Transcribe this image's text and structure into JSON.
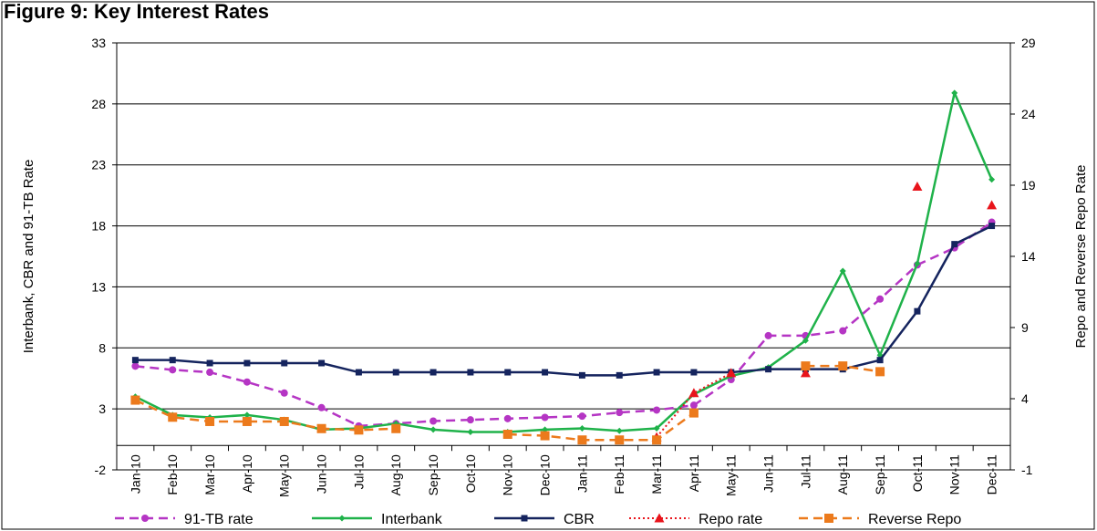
{
  "caption": "Figure 9: Key Interest Rates",
  "chart_data": {
    "type": "line",
    "categories": [
      "Jan-10",
      "Feb-10",
      "Mar-10",
      "Apr-10",
      "May-10",
      "Jun-10",
      "Jul-10",
      "Aug-10",
      "Sep-10",
      "Oct-10",
      "Nov-10",
      "Dec-10",
      "Jan-11",
      "Feb-11",
      "Mar-11",
      "Apr-11",
      "May-11",
      "Jun-11",
      "Jul-11",
      "Aug-11",
      "Sep-11",
      "Oct-11",
      "Nov-11",
      "Dec-11"
    ],
    "ylabel": "Interbank, CBR and 91-TB Rate",
    "y2label": "Repo and Reverse Repo Rate",
    "ylim": [
      -2,
      33
    ],
    "yticks": [
      -2,
      3,
      8,
      13,
      18,
      23,
      28,
      33
    ],
    "y2lim": [
      -1,
      29
    ],
    "y2ticks": [
      -1,
      4,
      9,
      14,
      19,
      24,
      29
    ],
    "grid": "horizontal",
    "legend_position": "bottom",
    "series": [
      {
        "name": "91-TB rate",
        "axis": "left",
        "color": "#b535c4",
        "style": "dashed",
        "marker": "circle",
        "values": [
          6.5,
          6.2,
          6.0,
          5.2,
          4.3,
          3.1,
          1.6,
          1.8,
          2.0,
          2.1,
          2.2,
          2.3,
          2.4,
          2.7,
          2.9,
          3.3,
          5.4,
          9.0,
          9.0,
          9.4,
          12.0,
          14.8,
          16.2,
          18.3
        ]
      },
      {
        "name": "Interbank",
        "axis": "left",
        "color": "#1fb24a",
        "style": "solid",
        "marker": "diamond",
        "values": [
          4.0,
          2.5,
          2.3,
          2.5,
          2.1,
          1.3,
          1.4,
          1.8,
          1.3,
          1.1,
          1.1,
          1.3,
          1.4,
          1.2,
          1.4,
          4.2,
          5.7,
          6.4,
          8.6,
          14.3,
          7.4,
          14.9,
          28.9,
          21.8
        ]
      },
      {
        "name": "CBR",
        "axis": "left",
        "color": "#15245e",
        "style": "solid",
        "marker": "square",
        "values": [
          7.0,
          7.0,
          6.75,
          6.75,
          6.75,
          6.75,
          6.0,
          6.0,
          6.0,
          6.0,
          6.0,
          6.0,
          5.75,
          5.75,
          6.0,
          6.0,
          6.0,
          6.25,
          6.25,
          6.25,
          7.0,
          11.0,
          16.5,
          18.0
        ]
      },
      {
        "name": "Repo rate",
        "axis": "right",
        "color": "#e8141b",
        "style": "dotted",
        "marker": "triangle",
        "values": [
          null,
          null,
          null,
          null,
          null,
          null,
          null,
          null,
          null,
          null,
          null,
          null,
          null,
          null,
          1.3,
          4.4,
          5.8,
          null,
          5.8,
          null,
          null,
          18.9,
          null,
          17.6
        ]
      },
      {
        "name": "Reverse Repo",
        "axis": "right",
        "color": "#ec7a1c",
        "style": "dashed",
        "marker": "square",
        "values": [
          3.9,
          2.7,
          2.4,
          2.4,
          2.4,
          1.9,
          1.8,
          1.9,
          null,
          null,
          1.5,
          1.4,
          1.1,
          1.1,
          1.1,
          3.0,
          null,
          null,
          6.3,
          6.3,
          5.9,
          null,
          null,
          null
        ]
      }
    ]
  }
}
